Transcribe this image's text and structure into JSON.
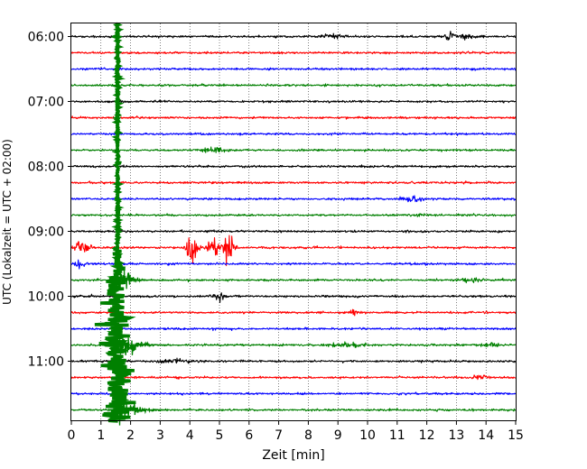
{
  "chart_data": {
    "type": "line",
    "title": "",
    "xlabel": "Zeit  [min]",
    "ylabel": "UTC (Lokalzeit = UTC + 02:00)",
    "xlim": [
      0,
      15
    ],
    "x_ticks": [
      0,
      1,
      2,
      3,
      4,
      5,
      6,
      7,
      8,
      9,
      10,
      11,
      12,
      13,
      14,
      15
    ],
    "y_ticks": [
      "06:00",
      "07:00",
      "08:00",
      "09:00",
      "10:00",
      "11:00"
    ],
    "trace_interval_minutes": 15,
    "trace_colors": [
      "#000000",
      "#ff0000",
      "#0000ff",
      "#008000"
    ],
    "start_time": "06:00",
    "end_time": "11:45",
    "trace_count": 24,
    "grid": "vertical dotted",
    "events": [
      {
        "start_time": "06:00",
        "minute": 8.9,
        "amplitude": 0.25,
        "width": 0.4
      },
      {
        "start_time": "06:00",
        "minute": 12.8,
        "amplitude": 0.6,
        "width": 0.2
      },
      {
        "start_time": "06:00",
        "minute": 13.3,
        "amplitude": 0.35,
        "width": 0.2
      },
      {
        "start_time": "07:45",
        "minute": 4.8,
        "amplitude": 0.35,
        "width": 0.4
      },
      {
        "start_time": "08:30",
        "minute": 11.5,
        "amplitude": 0.25,
        "width": 0.4
      },
      {
        "start_time": "08:45",
        "minute": 11.8,
        "amplitude": 0.15,
        "width": 0.3
      },
      {
        "start_time": "09:15",
        "minute": 0.35,
        "amplitude": 0.8,
        "width": 0.25
      },
      {
        "start_time": "09:15",
        "minute": 4.05,
        "amplitude": 1.8,
        "width": 0.2
      },
      {
        "start_time": "09:15",
        "minute": 4.8,
        "amplitude": 1.6,
        "width": 0.2
      },
      {
        "start_time": "09:15",
        "minute": 5.3,
        "amplitude": 2.6,
        "width": 0.16
      },
      {
        "start_time": "09:30",
        "minute": 0.3,
        "amplitude": 0.4,
        "width": 0.2
      },
      {
        "start_time": "09:45",
        "minute": 13.5,
        "amplitude": 0.25,
        "width": 0.4
      },
      {
        "start_time": "10:00",
        "minute": 4.95,
        "amplitude": 0.6,
        "width": 0.2
      },
      {
        "start_time": "10:15",
        "minute": 9.5,
        "amplitude": 0.35,
        "width": 0.15
      },
      {
        "start_time": "10:45",
        "minute": 9.3,
        "amplitude": 0.3,
        "width": 0.5
      },
      {
        "start_time": "10:45",
        "minute": 14.2,
        "amplitude": 0.3,
        "width": 0.3
      },
      {
        "start_time": "11:00",
        "minute": 3.5,
        "amplitude": 0.25,
        "width": 0.5
      },
      {
        "start_time": "11:15",
        "minute": 13.8,
        "amplitude": 0.3,
        "width": 0.3
      }
    ],
    "large_event": {
      "start_time": "09:15",
      "end_time": "11:45",
      "minute_start": 1.5,
      "minute_end": 2.3,
      "color": "#008000"
    }
  }
}
